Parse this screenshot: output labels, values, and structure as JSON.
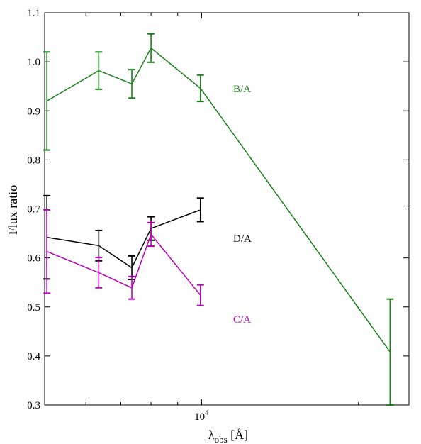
{
  "chart_data": {
    "type": "line",
    "xlabel_main": "λ",
    "xlabel_sub": "obs",
    "xlabel_unit": " [Å]",
    "ylabel": "Flux ratio",
    "x_scale": "log",
    "xlim": [
      5000,
      25000
    ],
    "ylim": [
      0.3,
      1.1
    ],
    "y_ticks": [
      "0.3",
      "0.4",
      "0.5",
      "0.6",
      "0.7",
      "0.8",
      "0.9",
      "1.0",
      "1.1"
    ],
    "x_tick_labels": [
      {
        "value": 10000,
        "base": "10",
        "exp": "4"
      }
    ],
    "grid": false,
    "series": [
      {
        "name": "B/A",
        "color": "#1a801a",
        "x": [
          5050,
          6350,
          7350,
          8000,
          9950,
          23000
        ],
        "y": [
          0.92,
          0.982,
          0.955,
          1.028,
          0.946,
          0.408
        ],
        "yerr": [
          0.1,
          0.038,
          0.029,
          0.029,
          0.027,
          0.108
        ]
      },
      {
        "name": "D/A",
        "color": "#000000",
        "x": [
          5050,
          6350,
          7350,
          8000,
          9950
        ],
        "y": [
          0.642,
          0.625,
          0.58,
          0.66,
          0.698
        ],
        "yerr": [
          0.085,
          0.031,
          0.024,
          0.024,
          0.024
        ]
      },
      {
        "name": "C/A",
        "color": "#bb00bb",
        "x": [
          5050,
          6350,
          7350,
          8000,
          9950
        ],
        "y": [
          0.613,
          0.57,
          0.539,
          0.648,
          0.524
        ],
        "yerr": [
          0.085,
          0.031,
          0.023,
          0.024,
          0.021
        ]
      }
    ],
    "annotations": [
      {
        "text": "B/A",
        "x": 11500,
        "y": 0.945,
        "color": "#1a801a"
      },
      {
        "text": "D/A",
        "x": 11500,
        "y": 0.64,
        "color": "#000000"
      },
      {
        "text": "C/A",
        "x": 11500,
        "y": 0.475,
        "color": "#bb00bb"
      }
    ]
  }
}
